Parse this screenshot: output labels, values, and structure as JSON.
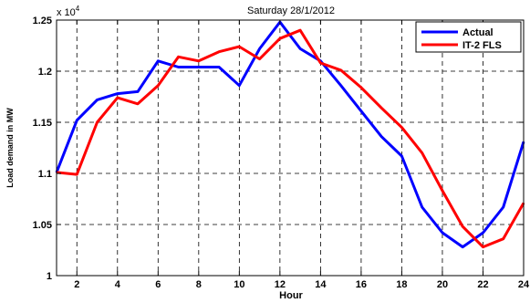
{
  "chart_data": {
    "type": "line",
    "title": "Saturday 28/1/2012",
    "xlabel": "Hour",
    "ylabel": "Load demand in MW",
    "y_exponent_label": "x 10",
    "y_exponent_power": "4",
    "xlim": [
      1,
      24
    ],
    "ylim": [
      1.0,
      1.25
    ],
    "x_ticks": [
      2,
      4,
      6,
      8,
      10,
      12,
      14,
      16,
      18,
      20,
      22,
      24
    ],
    "x_tick_labels": [
      "2",
      "4",
      "6",
      "8",
      "10",
      "12",
      "14",
      "16",
      "18",
      "20",
      "22",
      "24"
    ],
    "y_ticks": [
      1.0,
      1.05,
      1.1,
      1.15,
      1.2,
      1.25
    ],
    "y_tick_labels": [
      "1",
      "1.05",
      "1.1",
      "1.15",
      "1.2",
      "1.25"
    ],
    "grid": true,
    "legend_position": "top-right",
    "x": [
      1,
      2,
      3,
      4,
      5,
      6,
      7,
      8,
      9,
      10,
      11,
      12,
      13,
      14,
      15,
      16,
      17,
      18,
      19,
      20,
      21,
      22,
      23,
      24
    ],
    "series": [
      {
        "name": "Actual",
        "color": "#0000ff",
        "values": [
          1.101,
          1.152,
          1.172,
          1.178,
          1.18,
          1.21,
          1.204,
          1.204,
          1.204,
          1.186,
          1.222,
          1.248,
          1.222,
          1.21,
          1.186,
          1.161,
          1.136,
          1.117,
          1.067,
          1.042,
          1.028,
          1.042,
          1.067,
          1.131
        ]
      },
      {
        "name": "IT-2 FLS",
        "color": "#ff0000",
        "values": [
          1.101,
          1.099,
          1.15,
          1.174,
          1.168,
          1.186,
          1.214,
          1.21,
          1.219,
          1.224,
          1.212,
          1.232,
          1.24,
          1.208,
          1.201,
          1.184,
          1.164,
          1.145,
          1.12,
          1.083,
          1.048,
          1.028,
          1.036,
          1.071
        ]
      }
    ]
  }
}
